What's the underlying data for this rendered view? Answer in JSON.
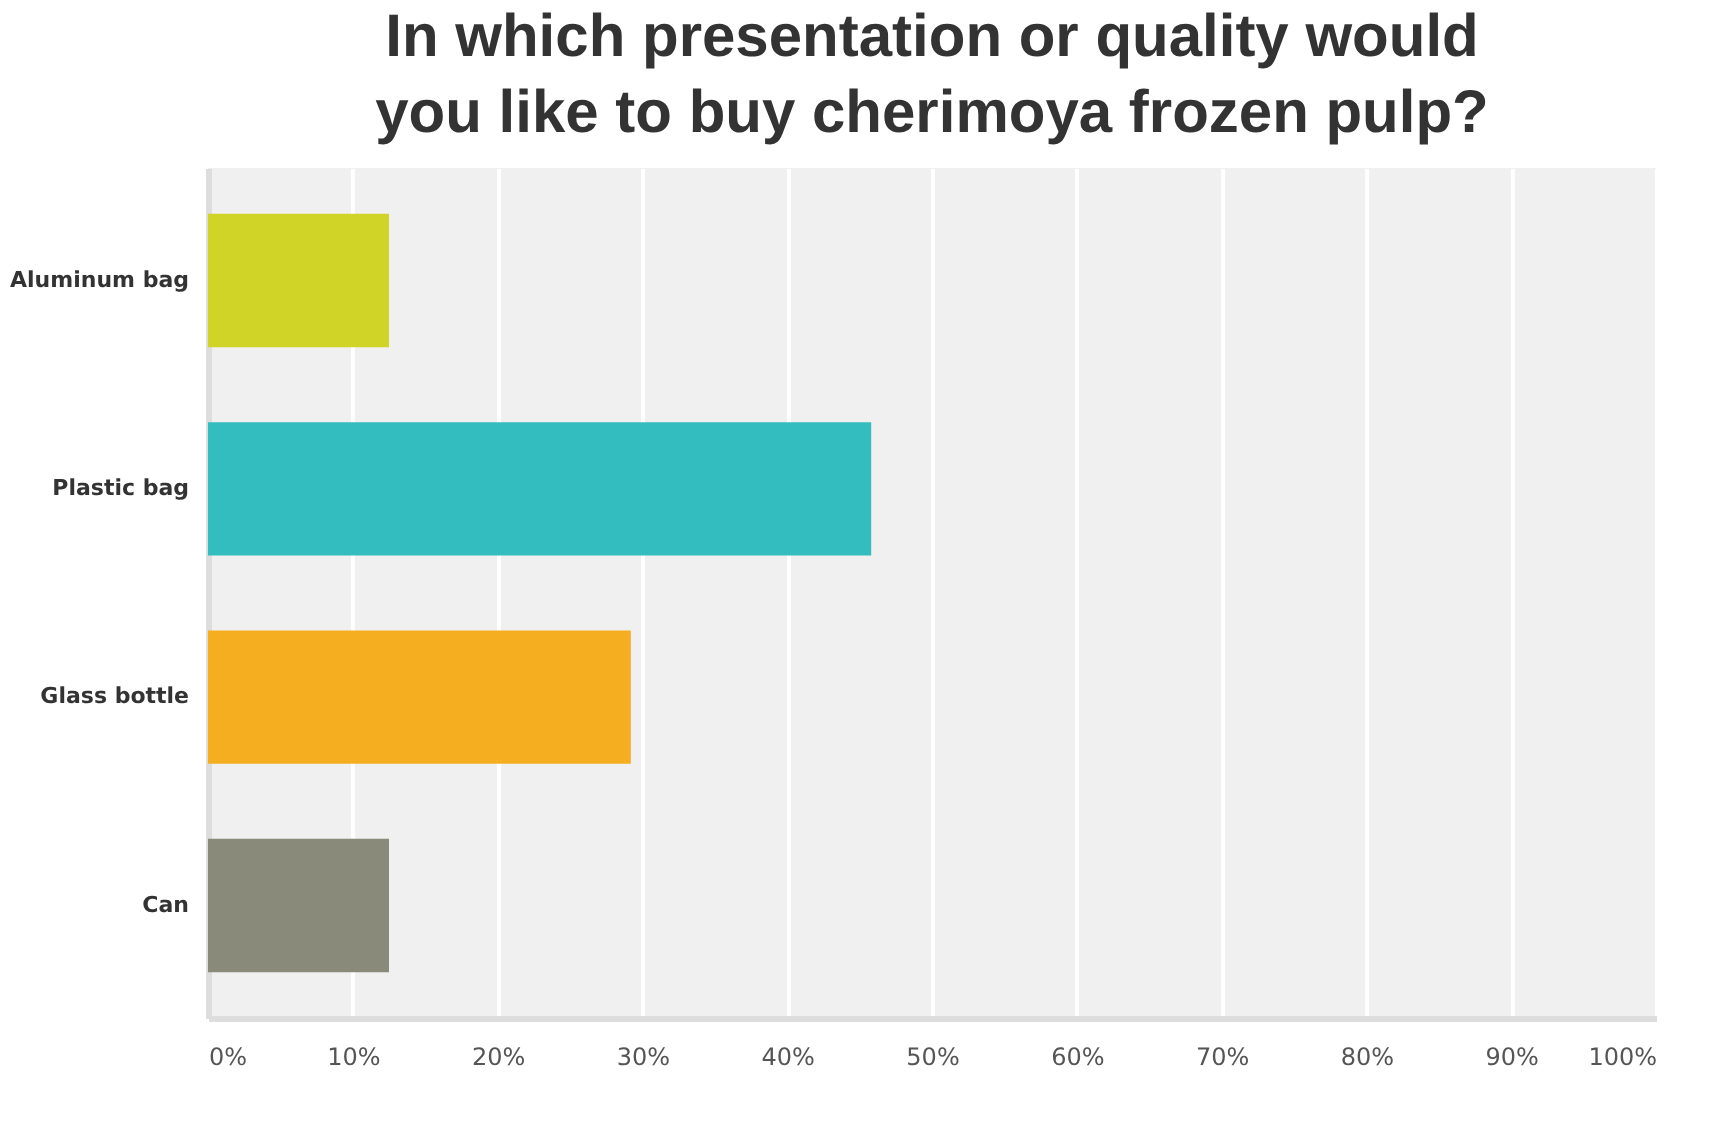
{
  "chart_data": {
    "type": "bar",
    "orientation": "horizontal",
    "title": "In which presentation or quality would you like to buy cherimoya frozen pulp?",
    "categories": [
      "Aluminum bag",
      "Plastic bag",
      "Glass bottle",
      "Can"
    ],
    "values": [
      12.5,
      45.8,
      29.2,
      12.5
    ],
    "colors": [
      "#d0d427",
      "#33bdbf",
      "#f5ae20",
      "#898a7a"
    ],
    "xlim": [
      0,
      100
    ],
    "xticks": [
      {
        "value": 0,
        "label": "0%"
      },
      {
        "value": 10,
        "label": "10%"
      },
      {
        "value": 20,
        "label": "20%"
      },
      {
        "value": 30,
        "label": "30%"
      },
      {
        "value": 40,
        "label": "40%"
      },
      {
        "value": 50,
        "label": "50%"
      },
      {
        "value": 60,
        "label": "60%"
      },
      {
        "value": 70,
        "label": "70%"
      },
      {
        "value": 80,
        "label": "80%"
      },
      {
        "value": 90,
        "label": "90%"
      },
      {
        "value": 100,
        "label": "100%"
      }
    ],
    "grid": true
  }
}
